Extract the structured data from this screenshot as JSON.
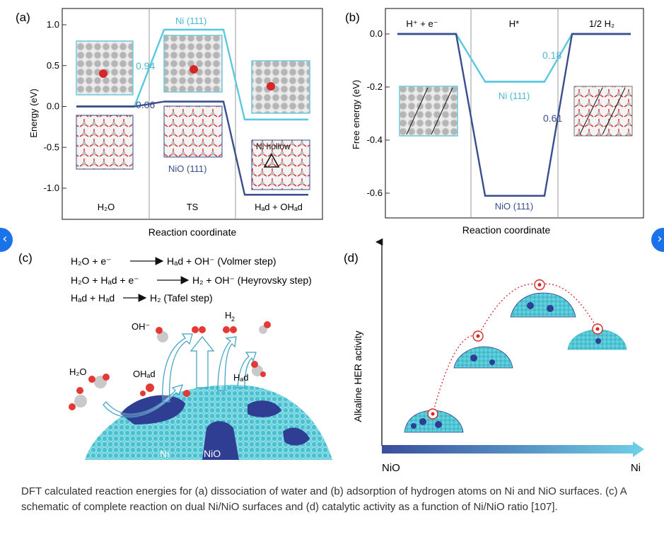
{
  "figure": {
    "panel_labels": [
      "(a)",
      "(b)",
      "(c)",
      "(d)"
    ],
    "caption": "DFT calculated reaction energies for (a) dissociation of water and (b) adsorption of hydrogen atoms on Ni and NiO surfaces. (c) A schematic of complete reaction on dual Ni/NiO surfaces and (d) catalytic activity as a function of Ni/NiO ratio [107]."
  },
  "panel_a": {
    "stage_labels": [
      "H₂O",
      "TS",
      "Hₐd + OHₐd"
    ],
    "annotations": {
      "ni_barrier": "0.94",
      "nio_barrier": "0.06",
      "ni_series": "Ni (111)",
      "nio_series": "NiO (111)",
      "hollow": "Ni hollow"
    },
    "colors": {
      "ni": "#5bc8df",
      "nio": "#3a4d8c"
    }
  },
  "panel_b": {
    "stage_labels": [
      "H⁺ + e⁻",
      "H*",
      "1/2 H₂"
    ],
    "annotations": {
      "ni_step": "0.18",
      "nio_step": "0.61",
      "ni_series": "Ni (111)",
      "nio_series": "NiO (111)"
    }
  },
  "panel_c": {
    "equations": [
      {
        "lhs": "H₂O + e⁻",
        "rhs": "Hₐd + OH⁻ (Volmer step)"
      },
      {
        "lhs": "H₂O + Hₐd + e⁻",
        "rhs": "H₂ + OH⁻ (Heyrovsky step)"
      },
      {
        "lhs": "Hₐd + Hₐd",
        "rhs": "H₂ (Tafel step)"
      }
    ],
    "labels": {
      "oh": "OH⁻",
      "h2_top": "H",
      "h2_top_sub": "2",
      "h2o": "H₂O",
      "ohad": "OHₐd",
      "had": "Hₐd",
      "ni": "Ni",
      "nio": "NiO"
    }
  },
  "panel_d": {
    "ylabel": "Alkaline HER activity",
    "x_left": "NiO",
    "x_right": "Ni",
    "points_relative_activity": [
      0.22,
      0.66,
      0.95,
      0.7
    ]
  },
  "chart_data": [
    {
      "type": "line",
      "title": "",
      "xlabel": "Reaction coordinate",
      "ylabel": "Energy (eV)",
      "categories": [
        "H₂O",
        "TS",
        "Hₐd + OHₐd"
      ],
      "ylim": [
        -1.2,
        1.2
      ],
      "yticks": [
        1.0,
        0.5,
        0.0,
        -0.5,
        -1.0
      ],
      "series": [
        {
          "name": "Ni (111)",
          "values": [
            0.0,
            0.94,
            -0.16
          ]
        },
        {
          "name": "NiO (111)",
          "values": [
            0.0,
            0.06,
            -1.08
          ]
        }
      ]
    },
    {
      "type": "line",
      "title": "",
      "xlabel": "Reaction coordinate",
      "ylabel": "Free energy (eV)",
      "categories": [
        "H⁺ + e⁻",
        "H*",
        "1/2 H₂"
      ],
      "ylim": [
        -0.7,
        0.05
      ],
      "yticks": [
        0.0,
        -0.2,
        -0.4,
        -0.6
      ],
      "series": [
        {
          "name": "Ni (111)",
          "values": [
            0.0,
            -0.18,
            0.0
          ]
        },
        {
          "name": "NiO (111)",
          "values": [
            0.0,
            -0.61,
            0.0
          ]
        }
      ]
    }
  ]
}
